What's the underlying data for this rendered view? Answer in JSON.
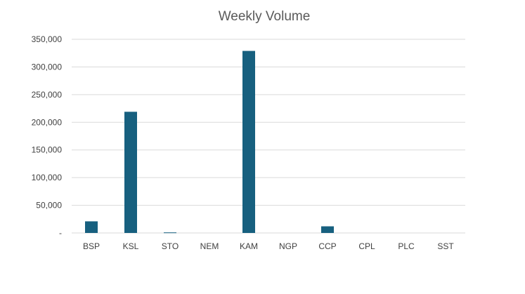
{
  "chart_data": {
    "type": "bar",
    "title": "Weekly Volume",
    "xlabel": "",
    "ylabel": "",
    "categories": [
      "BSP",
      "KSL",
      "STO",
      "NEM",
      "KAM",
      "NGP",
      "CCP",
      "CPL",
      "PLC",
      "SST"
    ],
    "values": [
      21000,
      219000,
      1000,
      0,
      329000,
      0,
      12000,
      0,
      0,
      0
    ],
    "ylim": [
      0,
      350000
    ],
    "y_ticks": [
      0,
      50000,
      100000,
      150000,
      200000,
      250000,
      300000,
      350000
    ],
    "y_tick_labels": [
      "-",
      "50,000",
      "100,000",
      "150,000",
      "200,000",
      "250,000",
      "300,000",
      "350,000"
    ],
    "grid": true,
    "legend": "none",
    "bar_color": "#17607f",
    "grid_color": "#d9d9d9",
    "text_color": "#404040",
    "title_color": "#595959"
  }
}
